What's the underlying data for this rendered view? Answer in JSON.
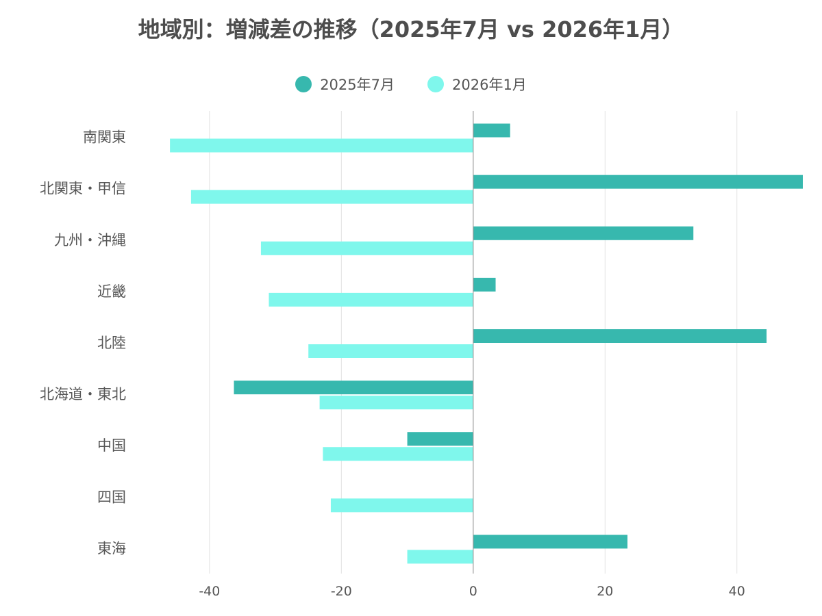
{
  "chart_data": {
    "type": "bar",
    "orientation": "horizontal",
    "title": "地域別：増減差の推移（2025年7月 vs 2026年1月）",
    "categories": [
      "南関東",
      "北関東・甲信",
      "九州・沖縄",
      "近畿",
      "北陸",
      "北海道・東北",
      "中国",
      "四国",
      "東海"
    ],
    "series": [
      {
        "name": "2025年7月",
        "color": "#37b8ae",
        "values": [
          5.6,
          50,
          33.4,
          3.4,
          44.5,
          -36.3,
          -10,
          0,
          23.4
        ]
      },
      {
        "name": "2026年1月",
        "color": "#7ff7ec",
        "values": [
          -46,
          -42.8,
          -32.2,
          -31,
          -25,
          -23.3,
          -22.8,
          -21.6,
          -10
        ]
      }
    ],
    "xlim": [
      -51,
      50
    ],
    "xticks": [
      -40,
      -20,
      0,
      20,
      40
    ],
    "legend_position": "top",
    "grid": true
  }
}
